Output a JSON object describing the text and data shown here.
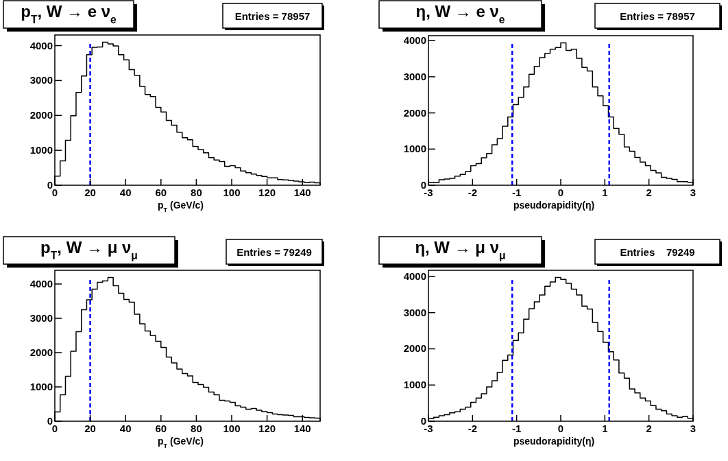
{
  "chart_data": [
    {
      "type": "histogram",
      "title": "p$_{T}$, W → e ν$_{e}$",
      "xlabel": "p$_{T}$ (GeV/c)",
      "annotations": [
        "Entries = 78957"
      ],
      "color": "#000000",
      "bins": [
        0,
        3,
        6,
        9,
        12,
        15,
        18,
        21,
        24,
        27,
        30,
        33,
        36,
        39,
        42,
        45,
        48,
        51,
        54,
        57,
        60,
        63,
        66,
        69,
        72,
        75,
        78,
        81,
        84,
        87,
        90,
        93,
        96,
        99,
        102,
        105,
        108,
        111,
        114,
        117,
        120,
        123,
        126,
        129,
        132,
        135,
        138,
        141,
        144,
        147,
        150
      ],
      "values": [
        260,
        700,
        1290,
        1990,
        2660,
        3130,
        3740,
        3950,
        3960,
        4100,
        4050,
        3990,
        3740,
        3590,
        3310,
        3150,
        2830,
        2600,
        2540,
        2230,
        2100,
        1860,
        1720,
        1520,
        1360,
        1300,
        1110,
        1020,
        930,
        790,
        720,
        680,
        540,
        560,
        500,
        410,
        360,
        320,
        280,
        250,
        210,
        210,
        160,
        150,
        140,
        120,
        100,
        80,
        90,
        70
      ],
      "xlim": [
        0,
        150
      ],
      "xticks": [
        0,
        20,
        40,
        60,
        80,
        100,
        120,
        140
      ],
      "ylim": [
        0,
        4305
      ],
      "yticks": [
        0,
        1000,
        2000,
        3000,
        4000
      ],
      "ref_lines": [
        {
          "axis": "x",
          "value": 20,
          "color": "#0000ff",
          "line_style": "dashed"
        }
      ]
    },
    {
      "type": "histogram",
      "title": "η, W → e ν$_{e}$",
      "xlabel": "pseudorapidity(η)",
      "annotations": [
        "Entries = 78957"
      ],
      "color": "#000000",
      "bins": [
        -3,
        -2.88,
        -2.76,
        -2.64,
        -2.52,
        -2.4,
        -2.28,
        -2.16,
        -2.04,
        -1.92,
        -1.8,
        -1.68,
        -1.56,
        -1.44,
        -1.32,
        -1.2,
        -1.08,
        -0.96,
        -0.84,
        -0.72,
        -0.6,
        -0.48,
        -0.36,
        -0.24,
        -0.12,
        0,
        0.12,
        0.24,
        0.36,
        0.48,
        0.6,
        0.72,
        0.84,
        0.96,
        1.08,
        1.2,
        1.32,
        1.44,
        1.56,
        1.68,
        1.8,
        1.92,
        2.04,
        2.16,
        2.28,
        2.4,
        2.52,
        2.64,
        2.76,
        2.88,
        3
      ],
      "values": [
        80,
        70,
        150,
        170,
        190,
        250,
        300,
        380,
        540,
        600,
        760,
        880,
        1120,
        1290,
        1630,
        1890,
        2230,
        2430,
        2720,
        3070,
        3290,
        3530,
        3650,
        3760,
        3810,
        3940,
        3730,
        3760,
        3510,
        3260,
        3160,
        2720,
        2470,
        2200,
        1890,
        1570,
        1410,
        1060,
        940,
        770,
        640,
        540,
        410,
        340,
        220,
        190,
        160,
        100,
        100,
        80
      ],
      "xlim": [
        -3,
        3
      ],
      "xticks": [
        -3,
        -2,
        -1,
        0,
        1,
        2,
        3
      ],
      "ylim": [
        0,
        4137
      ],
      "yticks": [
        0,
        1000,
        2000,
        3000,
        4000
      ],
      "ref_lines": [
        {
          "axis": "x",
          "value": -1.1,
          "color": "#0000ff",
          "line_style": "dashed"
        },
        {
          "axis": "x",
          "value": 1.1,
          "color": "#0000ff",
          "line_style": "dashed"
        }
      ]
    },
    {
      "type": "histogram",
      "title": "p$_{T}$, W → μ ν$_{μ}$",
      "xlabel": "p$_{T}$ (GeV/c)",
      "annotations": [
        "Entries = 79249"
      ],
      "color": "#000000",
      "bins": [
        0,
        3,
        6,
        9,
        12,
        15,
        18,
        21,
        24,
        27,
        30,
        33,
        36,
        39,
        42,
        45,
        48,
        51,
        54,
        57,
        60,
        63,
        66,
        69,
        72,
        75,
        78,
        81,
        84,
        87,
        90,
        93,
        96,
        99,
        102,
        105,
        108,
        111,
        114,
        117,
        120,
        123,
        126,
        129,
        132,
        135,
        138,
        141,
        144,
        147,
        150
      ],
      "values": [
        270,
        770,
        1310,
        2040,
        2610,
        3250,
        3540,
        3850,
        4050,
        4090,
        4190,
        3950,
        3730,
        3550,
        3470,
        3120,
        2840,
        2630,
        2500,
        2330,
        2150,
        1870,
        1700,
        1520,
        1390,
        1320,
        1130,
        1070,
        990,
        850,
        770,
        610,
        590,
        550,
        450,
        410,
        350,
        370,
        320,
        280,
        250,
        210,
        190,
        180,
        170,
        130,
        130,
        110,
        100,
        90
      ],
      "xlim": [
        0,
        150
      ],
      "xticks": [
        0,
        20,
        40,
        60,
        80,
        100,
        120,
        140
      ],
      "ylim": [
        0,
        4400
      ],
      "yticks": [
        0,
        1000,
        2000,
        3000,
        4000
      ],
      "ref_lines": [
        {
          "axis": "x",
          "value": 20,
          "color": "#0000ff",
          "line_style": "dashed"
        }
      ]
    },
    {
      "type": "histogram",
      "title": "η, W → μ ν$_{μ}$",
      "xlabel": "pseudorapidity(η)",
      "annotations": [
        "Entries    79249"
      ],
      "color": "#000000",
      "bins": [
        -3,
        -2.88,
        -2.76,
        -2.64,
        -2.52,
        -2.4,
        -2.28,
        -2.16,
        -2.04,
        -1.92,
        -1.8,
        -1.68,
        -1.56,
        -1.44,
        -1.32,
        -1.2,
        -1.08,
        -0.96,
        -0.84,
        -0.72,
        -0.6,
        -0.48,
        -0.36,
        -0.24,
        -0.12,
        0,
        0.12,
        0.24,
        0.36,
        0.48,
        0.6,
        0.72,
        0.84,
        0.96,
        1.08,
        1.2,
        1.32,
        1.44,
        1.56,
        1.68,
        1.8,
        1.92,
        2.04,
        2.16,
        2.28,
        2.4,
        2.52,
        2.64,
        2.76,
        2.88,
        3
      ],
      "values": [
        70,
        110,
        150,
        180,
        230,
        260,
        330,
        390,
        520,
        640,
        760,
        950,
        1120,
        1350,
        1680,
        1830,
        2230,
        2440,
        2820,
        3110,
        3300,
        3490,
        3730,
        3850,
        3970,
        3920,
        3810,
        3650,
        3490,
        3180,
        3100,
        2730,
        2480,
        2180,
        1920,
        1690,
        1330,
        1190,
        890,
        780,
        640,
        560,
        430,
        330,
        290,
        200,
        150,
        110,
        130,
        80
      ],
      "xlim": [
        -3,
        3
      ],
      "xticks": [
        -3,
        -2,
        -1,
        0,
        1,
        2,
        3
      ],
      "ylim": [
        0,
        4170
      ],
      "yticks": [
        0,
        1000,
        2000,
        3000,
        4000
      ],
      "ref_lines": [
        {
          "axis": "x",
          "value": -1.1,
          "color": "#0000ff",
          "line_style": "dashed"
        },
        {
          "axis": "x",
          "value": 1.1,
          "color": "#0000ff",
          "line_style": "dashed"
        }
      ]
    }
  ]
}
